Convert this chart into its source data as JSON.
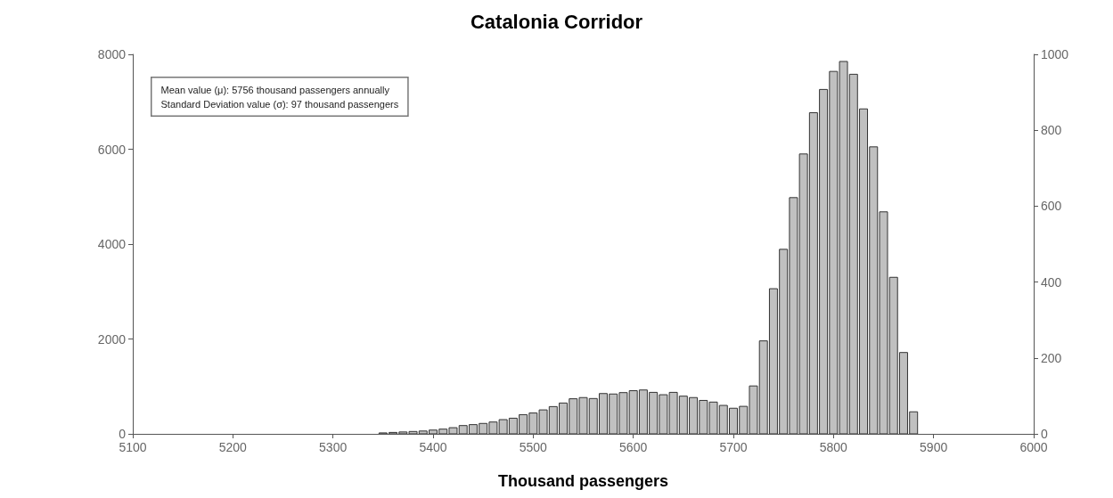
{
  "chart_data": {
    "type": "histogram",
    "title": "Catalonia Corridor",
    "xlabel": "Thousand passengers",
    "annotations": [
      "Mean value (μ): 5756 thousand passengers annually",
      "Standard Deviation value (σ): 97 thousand passengers"
    ],
    "bins": [
      5215,
      5225,
      5235,
      5245,
      5255,
      5265,
      5275,
      5285,
      5295,
      5305,
      5315,
      5325,
      5335,
      5345,
      5355,
      5365,
      5375,
      5385,
      5395,
      5405,
      5415,
      5425,
      5435,
      5445,
      5455,
      5465,
      5475,
      5485,
      5495,
      5505,
      5515,
      5525,
      5535,
      5545,
      5555,
      5565,
      5575,
      5585,
      5595,
      5605,
      5615,
      5625,
      5635,
      5645,
      5655,
      5665,
      5675,
      5685,
      5695,
      5705,
      5715,
      5725,
      5735,
      5745,
      5755,
      5765,
      5775,
      5785,
      5795,
      5805,
      5815,
      5825,
      5835,
      5845,
      5855,
      5865,
      5875,
      5885
    ],
    "values": [
      0,
      0,
      0,
      0,
      0,
      0,
      0,
      0,
      0,
      0,
      0,
      0,
      0,
      20,
      30,
      40,
      50,
      60,
      80,
      100,
      130,
      175,
      195,
      220,
      250,
      300,
      330,
      405,
      440,
      505,
      575,
      650,
      740,
      765,
      745,
      850,
      840,
      870,
      910,
      925,
      875,
      825,
      875,
      795,
      765,
      705,
      670,
      600,
      540,
      580,
      1010,
      1960,
      3060,
      3890,
      4980,
      5900,
      6770,
      7260,
      7640,
      7850,
      7580,
      6850,
      6050,
      4680,
      3300,
      1715,
      465
    ],
    "color": "#c0c0c0",
    "xlim": [
      5100,
      6000
    ],
    "xticks": [
      5100,
      5200,
      5300,
      5400,
      5500,
      5600,
      5700,
      5800,
      5900,
      6000
    ],
    "ylim": [
      0,
      8000
    ],
    "yticks": [
      0,
      2000,
      4000,
      6000,
      8000
    ],
    "y2lim": [
      0,
      1000
    ],
    "y2ticks": [
      0,
      200,
      400,
      600,
      800,
      1000
    ],
    "grid": false,
    "legend": false
  }
}
